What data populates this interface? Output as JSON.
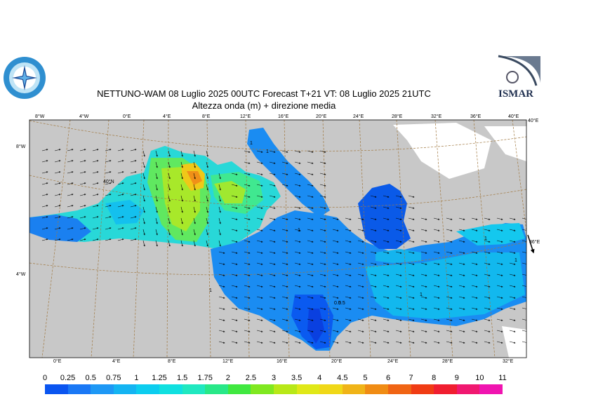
{
  "title_line1": "NETTUNO-WAM  08  Luglio   2025 00UTC Forecast T+21 VT: 08  Luglio   2025 21UTC",
  "title_line2": "Altezza onda (m) + direzione media",
  "logo_right_text": "ISMAR",
  "top_ticks": [
    "8°W",
    "4°W",
    "0°E",
    "4°E",
    "8°E",
    "12°E",
    "16°E",
    "20°E",
    "24°E",
    "28°E",
    "32°E",
    "36°E",
    "40°E"
  ],
  "bottom_ticks": [
    "0°E",
    "4°E",
    "8°E",
    "12°E",
    "16°E",
    "20°E",
    "24°E",
    "28°E",
    "32°E"
  ],
  "left_ticks": [
    "8°W",
    "4°W"
  ],
  "right_ticks": [
    "40°E",
    "36°E"
  ],
  "lat_label": "40°N",
  "contour_labels": [
    "1",
    "1",
    "1",
    "0.5",
    "0.5",
    "1",
    "1",
    "1",
    "1"
  ],
  "legend": {
    "labels": [
      "0",
      "0.25",
      "0.5",
      "0.75",
      "1",
      "1.25",
      "1.5",
      "1.75",
      "2",
      "2.5",
      "3",
      "3.5",
      "4",
      "4.5",
      "5",
      "6",
      "7",
      "8",
      "9",
      "10",
      "11"
    ],
    "colors": [
      "#0a55f0",
      "#1a78f5",
      "#1e98f5",
      "#14b4f2",
      "#0ccdef",
      "#10e0e0",
      "#20e8c0",
      "#28e888",
      "#40e840",
      "#80e820",
      "#b8e818",
      "#e0e818",
      "#f0d818",
      "#f0b418",
      "#f08c14",
      "#f06414",
      "#f03c14",
      "#f01e30",
      "#f01870",
      "#f014b0",
      "#e810e0"
    ]
  }
}
